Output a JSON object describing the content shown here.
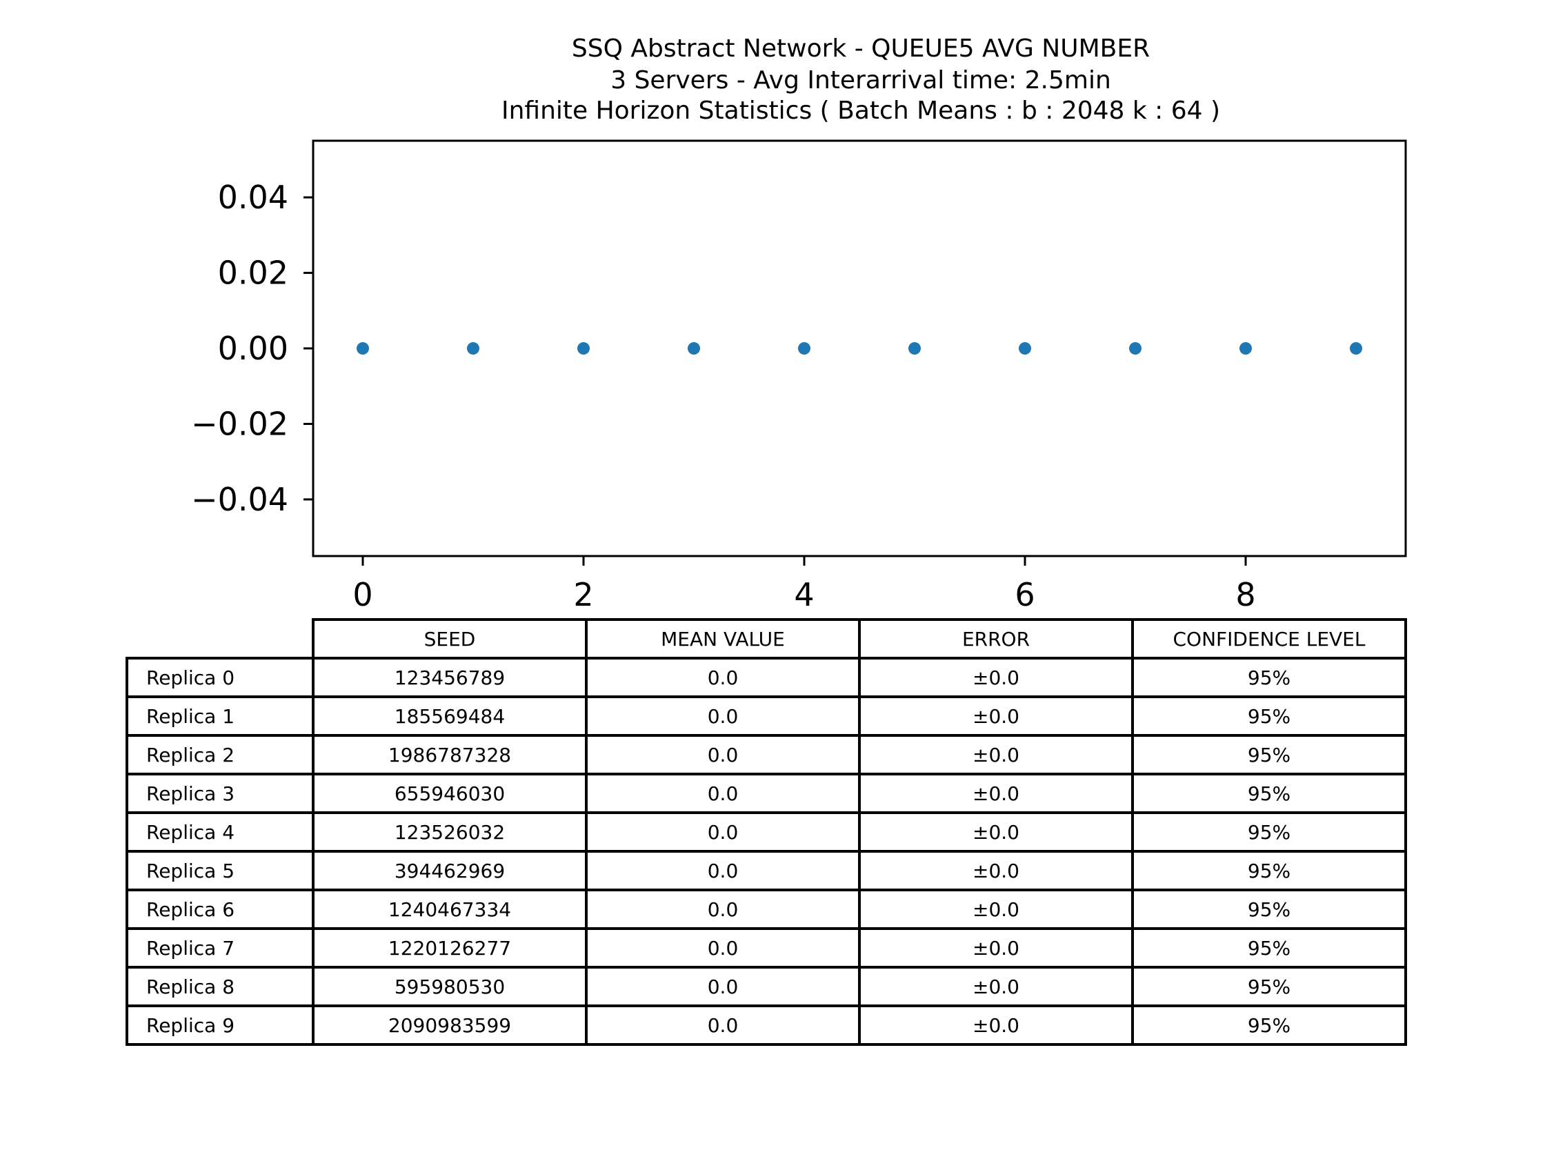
{
  "chart_data": {
    "type": "scatter",
    "title": [
      "SSQ Abstract Network - QUEUE5 AVG NUMBER",
      "3 Servers -  Avg Interarrival time: 2.5min",
      "Infinite Horizon Statistics ( Batch Means : b : 2048  k : 64 )"
    ],
    "x": [
      0,
      1,
      2,
      3,
      4,
      5,
      6,
      7,
      8,
      9
    ],
    "y": [
      0.0,
      0.0,
      0.0,
      0.0,
      0.0,
      0.0,
      0.0,
      0.0,
      0.0,
      0.0
    ],
    "xlim": [
      -0.45,
      9.45
    ],
    "ylim": [
      -0.055,
      0.055
    ],
    "xticks": [
      0,
      2,
      4,
      6,
      8
    ],
    "xtick_labels": [
      "0",
      "2",
      "4",
      "6",
      "8"
    ],
    "yticks": [
      0.04,
      0.02,
      0.0,
      -0.02,
      -0.04
    ],
    "ytick_labels": [
      "0.04",
      "0.02",
      "0.00",
      "−0.02",
      "−0.04"
    ],
    "marker_color": "#1f77b4",
    "grid": false
  },
  "table": {
    "columns": [
      "SEED",
      "MEAN VALUE",
      "ERROR",
      "CONFIDENCE LEVEL"
    ],
    "rows": [
      {
        "label": "Replica 0",
        "seed": "123456789",
        "mean": "0.0",
        "error": "±0.0",
        "confidence": "95%"
      },
      {
        "label": "Replica 1",
        "seed": "185569484",
        "mean": "0.0",
        "error": "±0.0",
        "confidence": "95%"
      },
      {
        "label": "Replica 2",
        "seed": "1986787328",
        "mean": "0.0",
        "error": "±0.0",
        "confidence": "95%"
      },
      {
        "label": "Replica 3",
        "seed": "655946030",
        "mean": "0.0",
        "error": "±0.0",
        "confidence": "95%"
      },
      {
        "label": "Replica 4",
        "seed": "123526032",
        "mean": "0.0",
        "error": "±0.0",
        "confidence": "95%"
      },
      {
        "label": "Replica 5",
        "seed": "394462969",
        "mean": "0.0",
        "error": "±0.0",
        "confidence": "95%"
      },
      {
        "label": "Replica 6",
        "seed": "1240467334",
        "mean": "0.0",
        "error": "±0.0",
        "confidence": "95%"
      },
      {
        "label": "Replica 7",
        "seed": "1220126277",
        "mean": "0.0",
        "error": "±0.0",
        "confidence": "95%"
      },
      {
        "label": "Replica 8",
        "seed": "595980530",
        "mean": "0.0",
        "error": "±0.0",
        "confidence": "95%"
      },
      {
        "label": "Replica 9",
        "seed": "2090983599",
        "mean": "0.0",
        "error": "±0.0",
        "confidence": "95%"
      }
    ]
  }
}
